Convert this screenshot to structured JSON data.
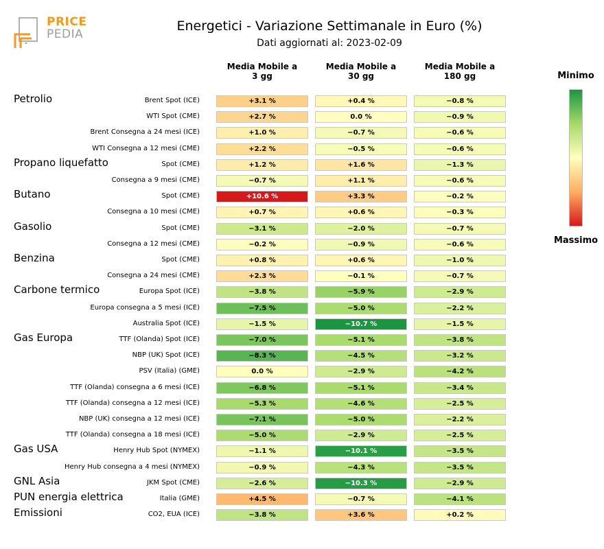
{
  "logo": {
    "line1": "PRICE",
    "line2": "PEDIA"
  },
  "colorbar": {
    "min_label": "Minimo",
    "max_label": "Massimo",
    "gradient": [
      "#1a9641",
      "#a6d96a",
      "#ffffbf",
      "#fdae61",
      "#d7191c"
    ]
  },
  "chart_data": {
    "type": "heatmap",
    "title": "Energetici - Variazione Settimanale in Euro (%)",
    "subtitle": "Dati aggiornati al: 2023-02-09",
    "columns": [
      "Media Mobile a\n3 gg",
      "Media Mobile a\n30 gg",
      "Media Mobile a\n180 gg"
    ],
    "value_unit": "%",
    "color_min": -10.7,
    "color_max": 10.6,
    "groups": [
      {
        "name": "Petrolio",
        "start_row": 0
      },
      {
        "name": "Propano liquefatto",
        "start_row": 4
      },
      {
        "name": "Butano",
        "start_row": 6
      },
      {
        "name": "Gasolio",
        "start_row": 8
      },
      {
        "name": "Benzina",
        "start_row": 10
      },
      {
        "name": "Carbone termico",
        "start_row": 12
      },
      {
        "name": "Gas Europa",
        "start_row": 15
      },
      {
        "name": "Gas USA",
        "start_row": 22
      },
      {
        "name": "GNL Asia",
        "start_row": 24
      },
      {
        "name": "PUN energia elettrica",
        "start_row": 25
      },
      {
        "name": "Emissioni",
        "start_row": 26
      }
    ],
    "rows": [
      {
        "label": "Brent Spot (ICE)",
        "values": [
          3.1,
          0.4,
          -0.8
        ]
      },
      {
        "label": "WTI Spot (CME)",
        "values": [
          2.7,
          0.0,
          -0.9
        ]
      },
      {
        "label": "Brent Consegna a 24 mesi (ICE)",
        "values": [
          1.0,
          -0.7,
          -0.6
        ]
      },
      {
        "label": "WTI Consegna a 12 mesi (CME)",
        "values": [
          2.2,
          -0.5,
          -0.6
        ]
      },
      {
        "label": "Spot (CME)",
        "values": [
          1.2,
          1.6,
          -1.3
        ]
      },
      {
        "label": "Consegna a 9 mesi (CME)",
        "values": [
          -0.7,
          1.1,
          -0.6
        ]
      },
      {
        "label": "Spot (CME)",
        "values": [
          10.6,
          3.3,
          -0.2
        ]
      },
      {
        "label": "Consegna a 10 mesi (CME)",
        "values": [
          0.7,
          0.6,
          -0.3
        ]
      },
      {
        "label": "Spot (CME)",
        "values": [
          -3.1,
          -2.0,
          -0.7
        ]
      },
      {
        "label": "Consegna a 12 mesi (CME)",
        "values": [
          -0.2,
          -0.9,
          -0.6
        ]
      },
      {
        "label": "Spot (CME)",
        "values": [
          0.8,
          0.6,
          -1.0
        ]
      },
      {
        "label": "Consegna a 24 mesi (CME)",
        "values": [
          2.3,
          -0.1,
          -0.7
        ]
      },
      {
        "label": "Europa Spot (ICE)",
        "values": [
          -3.8,
          -5.9,
          -2.9
        ]
      },
      {
        "label": "Europa consegna a 5 mesi (ICE)",
        "values": [
          -7.5,
          -5.0,
          -2.2
        ]
      },
      {
        "label": "Australia Spot (ICE)",
        "values": [
          -1.5,
          -10.7,
          -1.5
        ]
      },
      {
        "label": "TTF (Olanda) Spot (ICE)",
        "values": [
          -7.0,
          -5.1,
          -3.8
        ]
      },
      {
        "label": "NBP (UK) Spot (ICE)",
        "values": [
          -8.3,
          -4.5,
          -3.2
        ]
      },
      {
        "label": "PSV (Italia) (GME)",
        "values": [
          0.0,
          -2.9,
          -4.2
        ]
      },
      {
        "label": "TTF (Olanda) consegna a 6 mesi (ICE)",
        "values": [
          -6.8,
          -5.1,
          -3.4
        ]
      },
      {
        "label": "TTF (Olanda) consegna a 12 mesi (ICE)",
        "values": [
          -5.3,
          -4.6,
          -2.5
        ]
      },
      {
        "label": "NBP (UK) consegna a 12 mesi (ICE)",
        "values": [
          -7.1,
          -5.0,
          -2.2
        ]
      },
      {
        "label": "TTF (Olanda) consegna a 18 mesi (ICE)",
        "values": [
          -5.0,
          -2.9,
          -2.5
        ]
      },
      {
        "label": "Henry Hub Spot (NYMEX)",
        "values": [
          -1.1,
          -10.1,
          -3.5
        ]
      },
      {
        "label": "Henry Hub consegna a 4 mesi (NYMEX)",
        "values": [
          -0.9,
          -4.3,
          -3.5
        ]
      },
      {
        "label": "JKM Spot (CME)",
        "values": [
          -2.6,
          -10.3,
          -2.9
        ]
      },
      {
        "label": "Italia (GME)",
        "values": [
          4.5,
          -0.7,
          -4.1
        ]
      },
      {
        "label": "CO2, EUA (ICE)",
        "values": [
          -3.8,
          3.6,
          0.2
        ]
      }
    ]
  }
}
